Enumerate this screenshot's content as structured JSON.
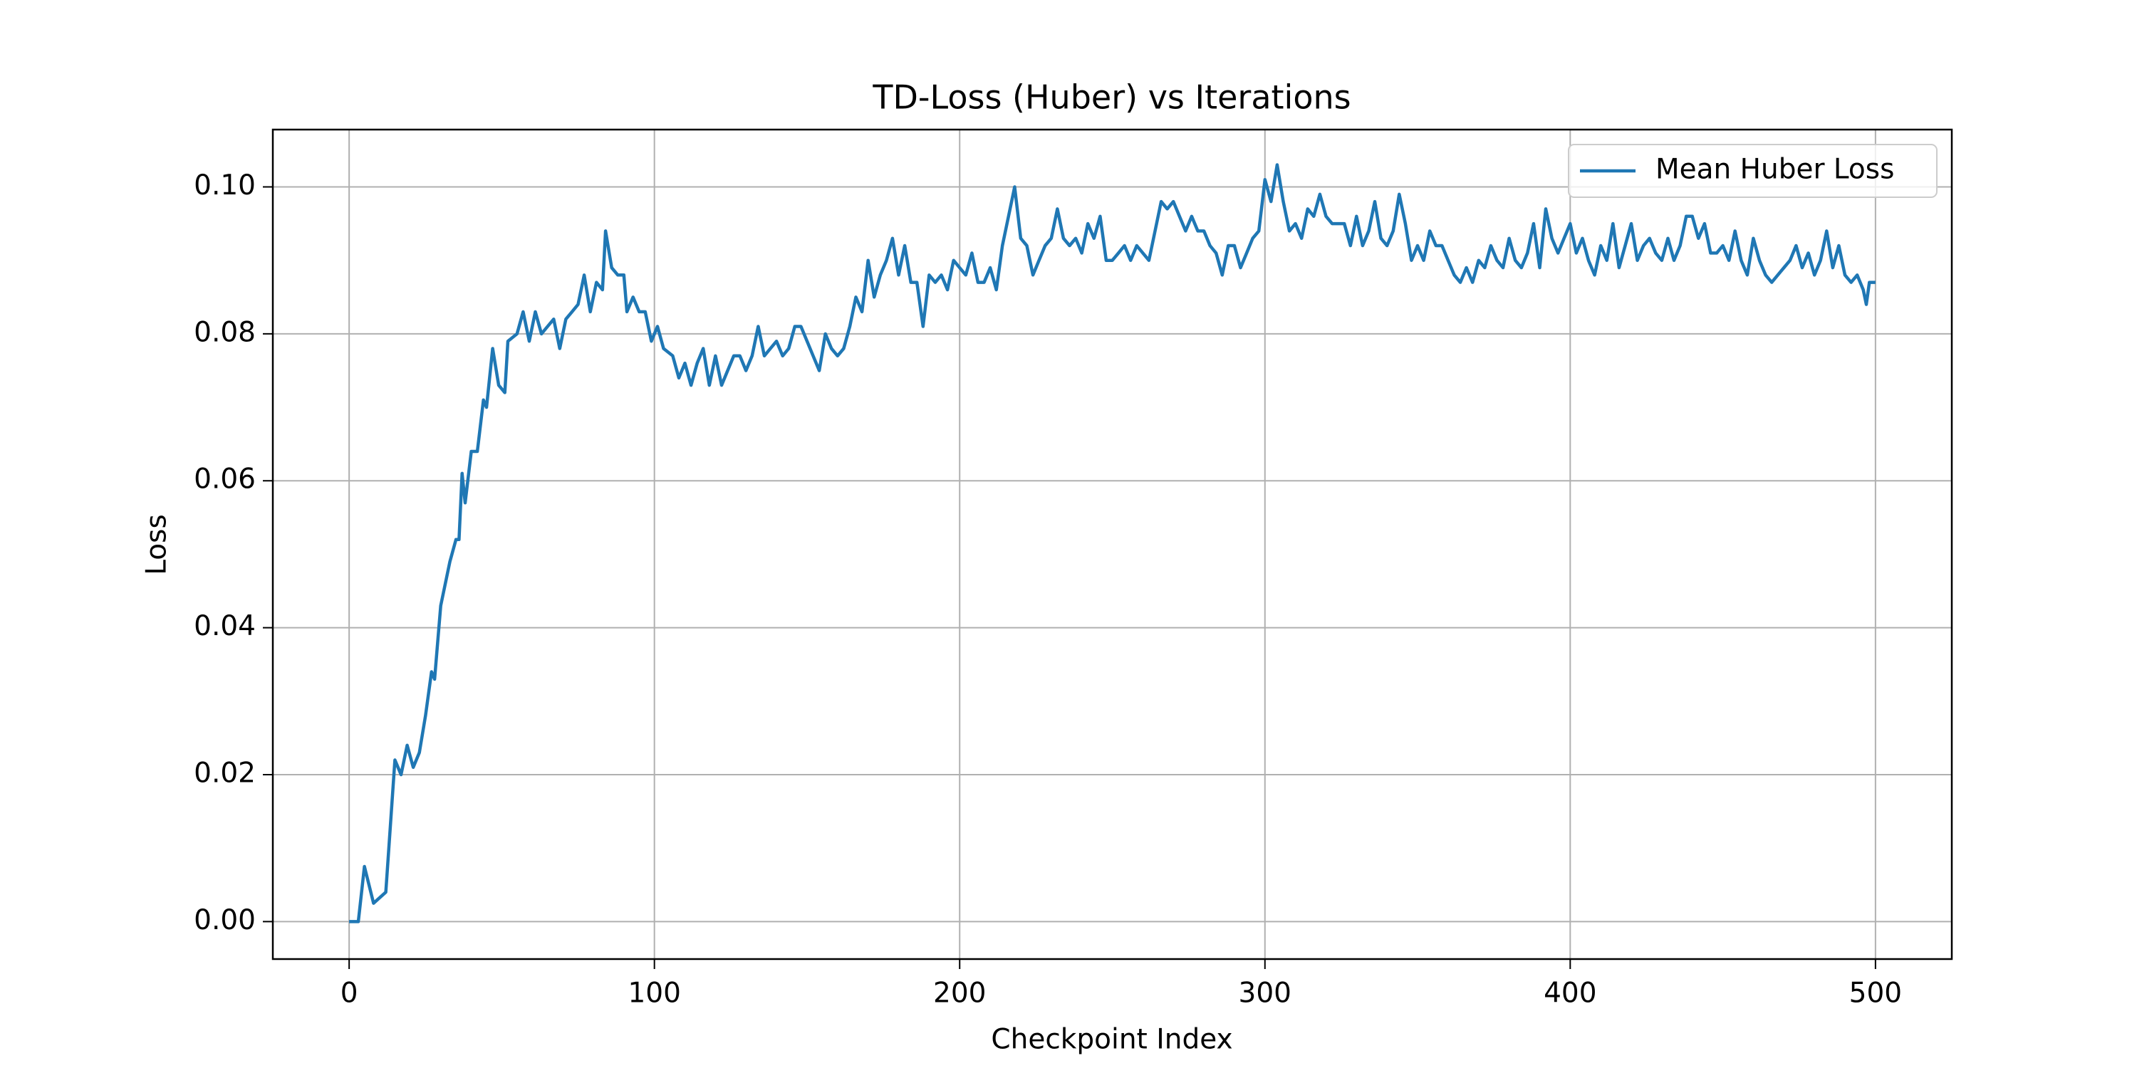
{
  "chart_data": {
    "type": "line",
    "title": "TD-Loss (Huber) vs Iterations",
    "xlabel": "Checkpoint Index",
    "ylabel": "Loss",
    "x": [
      0,
      3,
      5,
      8,
      12,
      15,
      17,
      19,
      21,
      23,
      25,
      27,
      28,
      30,
      33,
      35,
      36,
      37,
      38,
      40,
      42,
      44,
      45,
      47,
      49,
      51,
      52,
      55,
      57,
      59,
      61,
      63,
      65,
      67,
      69,
      71,
      73,
      75,
      77,
      79,
      81,
      83,
      84,
      86,
      88,
      90,
      91,
      93,
      95,
      97,
      99,
      101,
      103,
      106,
      108,
      110,
      112,
      114,
      116,
      118,
      120,
      122,
      124,
      126,
      128,
      130,
      132,
      134,
      136,
      138,
      140,
      142,
      144,
      146,
      148,
      150,
      152,
      154,
      156,
      158,
      160,
      162,
      164,
      166,
      168,
      170,
      172,
      174,
      176,
      178,
      180,
      182,
      184,
      186,
      188,
      190,
      192,
      194,
      196,
      198,
      200,
      202,
      204,
      206,
      208,
      210,
      212,
      214,
      216,
      218,
      220,
      222,
      224,
      226,
      228,
      230,
      232,
      234,
      236,
      238,
      240,
      242,
      244,
      246,
      248,
      250,
      252,
      254,
      256,
      258,
      260,
      262,
      264,
      266,
      268,
      270,
      272,
      274,
      276,
      278,
      280,
      282,
      284,
      286,
      288,
      290,
      292,
      294,
      296,
      298,
      300,
      302,
      304,
      306,
      308,
      310,
      312,
      314,
      316,
      318,
      320,
      322,
      324,
      326,
      328,
      330,
      332,
      334,
      336,
      338,
      340,
      342,
      344,
      346,
      348,
      350,
      352,
      354,
      356,
      358,
      360,
      362,
      364,
      366,
      368,
      370,
      372,
      374,
      376,
      378,
      380,
      382,
      384,
      386,
      388,
      390,
      392,
      394,
      396,
      398,
      400,
      402,
      404,
      406,
      408,
      410,
      412,
      414,
      416,
      418,
      420,
      422,
      424,
      426,
      428,
      430,
      432,
      434,
      436,
      438,
      440,
      442,
      444,
      446,
      448,
      450,
      452,
      454,
      456,
      458,
      460,
      462,
      464,
      466,
      468,
      470,
      472,
      474,
      476,
      478,
      480,
      482,
      484,
      486,
      488,
      490,
      492,
      494,
      496,
      497,
      498,
      500
    ],
    "series": [
      {
        "name": "Mean Huber Loss",
        "color": "#1f77b4",
        "values": [
          0.0,
          0.0,
          0.0075,
          0.0025,
          0.004,
          0.022,
          0.02,
          0.024,
          0.021,
          0.023,
          0.028,
          0.034,
          0.033,
          0.043,
          0.049,
          0.052,
          0.052,
          0.061,
          0.057,
          0.064,
          0.064,
          0.071,
          0.07,
          0.078,
          0.073,
          0.072,
          0.079,
          0.08,
          0.083,
          0.079,
          0.083,
          0.08,
          0.081,
          0.082,
          0.078,
          0.082,
          0.083,
          0.084,
          0.088,
          0.083,
          0.087,
          0.086,
          0.094,
          0.089,
          0.088,
          0.088,
          0.083,
          0.085,
          0.083,
          0.083,
          0.079,
          0.081,
          0.078,
          0.077,
          0.074,
          0.076,
          0.073,
          0.076,
          0.078,
          0.073,
          0.077,
          0.073,
          0.075,
          0.077,
          0.077,
          0.075,
          0.077,
          0.081,
          0.077,
          0.078,
          0.079,
          0.077,
          0.078,
          0.081,
          0.081,
          0.079,
          0.077,
          0.075,
          0.08,
          0.078,
          0.077,
          0.078,
          0.081,
          0.085,
          0.083,
          0.09,
          0.085,
          0.088,
          0.09,
          0.093,
          0.088,
          0.092,
          0.087,
          0.087,
          0.081,
          0.088,
          0.087,
          0.088,
          0.086,
          0.09,
          0.089,
          0.088,
          0.091,
          0.087,
          0.087,
          0.089,
          0.086,
          0.092,
          0.096,
          0.1,
          0.093,
          0.092,
          0.088,
          0.09,
          0.092,
          0.093,
          0.097,
          0.093,
          0.092,
          0.093,
          0.091,
          0.095,
          0.093,
          0.096,
          0.09,
          0.09,
          0.091,
          0.092,
          0.09,
          0.092,
          0.091,
          0.09,
          0.094,
          0.098,
          0.097,
          0.098,
          0.096,
          0.094,
          0.096,
          0.094,
          0.094,
          0.092,
          0.091,
          0.088,
          0.092,
          0.092,
          0.089,
          0.091,
          0.093,
          0.094,
          0.101,
          0.098,
          0.103,
          0.098,
          0.094,
          0.095,
          0.093,
          0.097,
          0.096,
          0.099,
          0.096,
          0.095,
          0.095,
          0.095,
          0.092,
          0.096,
          0.092,
          0.094,
          0.098,
          0.093,
          0.092,
          0.094,
          0.099,
          0.095,
          0.09,
          0.092,
          0.09,
          0.094,
          0.092,
          0.092,
          0.09,
          0.088,
          0.087,
          0.089,
          0.087,
          0.09,
          0.089,
          0.092,
          0.09,
          0.089,
          0.093,
          0.09,
          0.089,
          0.091,
          0.095,
          0.089,
          0.097,
          0.093,
          0.091,
          0.093,
          0.095,
          0.091,
          0.093,
          0.09,
          0.088,
          0.092,
          0.09,
          0.095,
          0.089,
          0.092,
          0.095,
          0.09,
          0.092,
          0.093,
          0.091,
          0.09,
          0.093,
          0.09,
          0.092,
          0.096,
          0.096,
          0.093,
          0.095,
          0.091,
          0.091,
          0.092,
          0.09,
          0.094,
          0.09,
          0.088,
          0.093,
          0.09,
          0.088,
          0.087,
          0.088,
          0.089,
          0.09,
          0.092,
          0.089,
          0.091,
          0.088,
          0.09,
          0.094,
          0.089,
          0.092,
          0.088,
          0.087,
          0.088,
          0.086,
          0.084,
          0.087,
          0.087
        ]
      }
    ],
    "xlim": [
      -25,
      525
    ],
    "xticks": [
      0,
      100,
      200,
      300,
      400,
      500
    ],
    "ylim": [
      -0.0051,
      0.1078
    ],
    "yticks": [
      {
        "value": 0,
        "label": "0.00"
      },
      {
        "value": 0.02,
        "label": "0.02"
      },
      {
        "value": 0.04,
        "label": "0.04"
      },
      {
        "value": 0.06,
        "label": "0.06"
      },
      {
        "value": 0.08,
        "label": "0.08"
      },
      {
        "value": 0.1,
        "label": "0.10"
      }
    ],
    "grid": true,
    "legend": "upper right"
  }
}
